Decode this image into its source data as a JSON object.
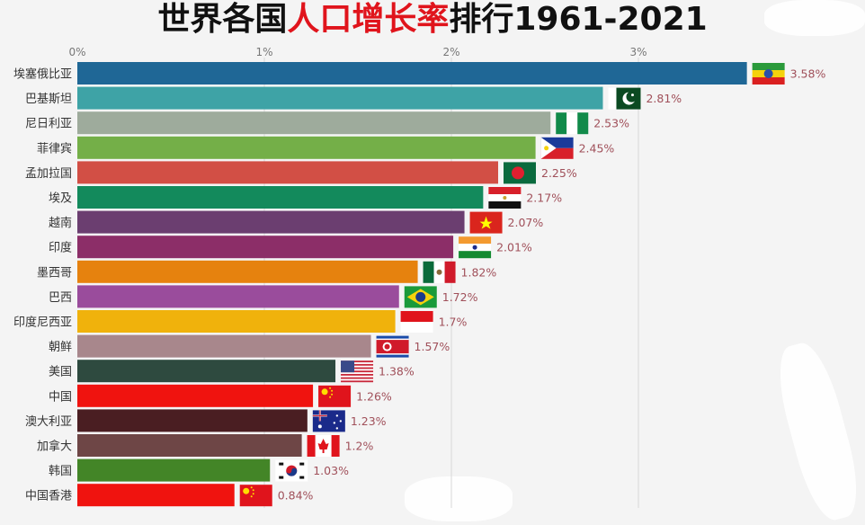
{
  "title": {
    "part1": "世界各国",
    "part2": "人口增长率",
    "part3": "排行1961-2021",
    "highlight_color": "#e0141c"
  },
  "chart_data": {
    "type": "bar",
    "orientation": "horizontal",
    "title": "世界各国人口增长率排行1961-2021",
    "xlim": [
      0,
      3.75
    ],
    "xticks": [
      0,
      1,
      2,
      3
    ],
    "xtick_labels": [
      "0%",
      "1%",
      "2%",
      "3%"
    ],
    "axis_position": "top",
    "grid": true,
    "categories": [
      "埃塞俄比亚",
      "巴基斯坦",
      "尼日利亚",
      "菲律宾",
      "孟加拉国",
      "埃及",
      "越南",
      "印度",
      "墨西哥",
      "巴西",
      "印度尼西亚",
      "朝鲜",
      "美国",
      "中国",
      "澳大利亚",
      "加拿大",
      "韩国",
      "中国香港"
    ],
    "values": [
      3.58,
      2.81,
      2.53,
      2.45,
      2.25,
      2.17,
      2.07,
      2.01,
      1.82,
      1.72,
      1.7,
      1.57,
      1.38,
      1.26,
      1.23,
      1.2,
      1.03,
      0.84
    ],
    "value_labels": [
      "3.58%",
      "2.81%",
      "2.53%",
      "2.45%",
      "2.25%",
      "2.17%",
      "2.07%",
      "2.01%",
      "1.82%",
      "1.72%",
      "1.7%",
      "1.57%",
      "1.38%",
      "1.26%",
      "1.23%",
      "1.2%",
      "1.03%",
      "0.84%"
    ],
    "colors": [
      "#1f6796",
      "#3ea3a6",
      "#9eab9c",
      "#74af48",
      "#d24f45",
      "#138a5c",
      "#6b3e70",
      "#8c2e68",
      "#e6820e",
      "#9a4c9c",
      "#f0b20c",
      "#a8878c",
      "#2e4a3f",
      "#f0130f",
      "#4a1e22",
      "#6e4646",
      "#438527",
      "#f0130f"
    ],
    "flag_icons": [
      "ethiopia-flag",
      "pakistan-flag",
      "nigeria-flag",
      "philippines-flag",
      "bangladesh-flag",
      "egypt-flag",
      "vietnam-flag",
      "india-flag",
      "mexico-flag",
      "brazil-flag",
      "indonesia-flag",
      "north-korea-flag",
      "usa-flag",
      "china-flag",
      "australia-flag",
      "canada-flag",
      "south-korea-flag",
      "china-flag"
    ]
  }
}
